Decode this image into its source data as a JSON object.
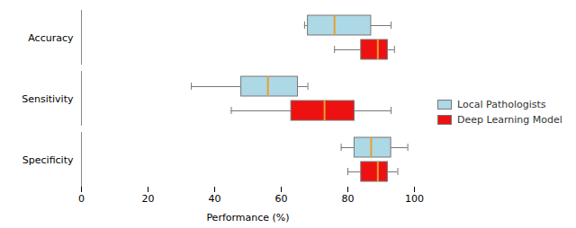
{
  "chart_data": {
    "type": "boxplot",
    "orientation": "horizontal",
    "categories": [
      "Accuracy",
      "Sensitivity",
      "Specificity"
    ],
    "series": [
      {
        "name": "Local Pathologists",
        "color": "#add8e6",
        "median_color": "#e8a030",
        "values": [
          {
            "whislo": 67,
            "q1": 68,
            "med": 76,
            "q3": 87,
            "whishi": 93
          },
          {
            "whislo": 33,
            "q1": 48,
            "med": 56,
            "q3": 65,
            "whishi": 68
          },
          {
            "whislo": 78,
            "q1": 82,
            "med": 87,
            "q3": 93,
            "whishi": 98
          }
        ]
      },
      {
        "name": "Deep Learning Model",
        "color": "#ee1111",
        "median_color": "#e8a030",
        "values": [
          {
            "whislo": 76,
            "q1": 84,
            "med": 89,
            "q3": 92,
            "whishi": 94
          },
          {
            "whislo": 45,
            "q1": 63,
            "med": 73,
            "q3": 82,
            "whishi": 93
          },
          {
            "whislo": 80,
            "q1": 84,
            "med": 89,
            "q3": 92,
            "whishi": 95
          }
        ]
      }
    ],
    "edge_color": "#777777",
    "xlabel": "Performance (%)",
    "xlim": [
      0,
      100
    ],
    "xticks": [
      0,
      20,
      40,
      60,
      80,
      100
    ],
    "legend": "right",
    "grid": false
  }
}
